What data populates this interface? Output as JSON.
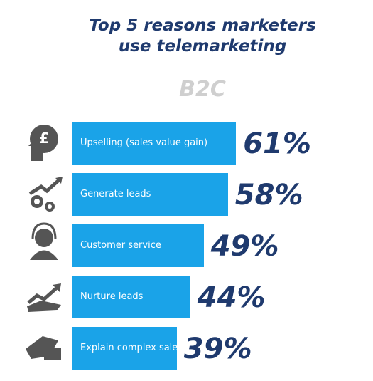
{
  "chart_data": {
    "type": "bar",
    "orientation": "horizontal",
    "title": "Top 5 reasons marketers use telemarketing",
    "subtitle": "B2C",
    "categories": [
      "Upselling (sales value gain)",
      "Generate leads",
      "Customer service",
      "Nurture leads",
      "Explain complex sales"
    ],
    "values": [
      61,
      58,
      49,
      44,
      39
    ],
    "value_labels": [
      "61%",
      "58%",
      "49%",
      "44%",
      "39%"
    ],
    "color": "#1aa3e8"
  }
}
